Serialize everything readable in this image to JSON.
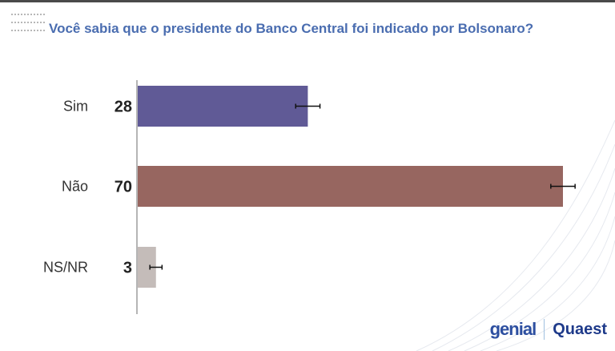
{
  "title": "Você sabia que o presidente do Banco Central foi indicado por Bolsonaro?",
  "chart_data": {
    "type": "bar",
    "orientation": "horizontal",
    "categories": [
      "Sim",
      "Não",
      "NS/NR"
    ],
    "values": [
      28,
      70,
      3
    ],
    "error_margin": [
      2,
      2,
      1
    ],
    "colors": [
      "#605a96",
      "#976660",
      "#c4bcb9"
    ],
    "xlim": [
      0,
      70
    ],
    "grid": false,
    "legend": "none"
  },
  "logos": {
    "genial": "genial",
    "quaest": "Quaest"
  }
}
